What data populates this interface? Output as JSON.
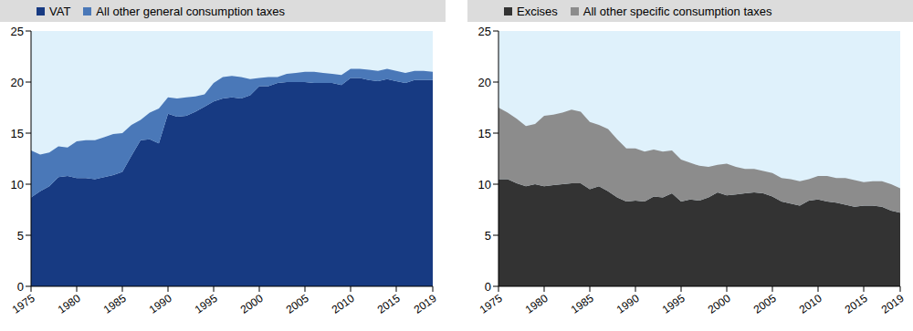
{
  "chart_data": [
    {
      "type": "area",
      "stacked": true,
      "legend": "top",
      "grid": true,
      "x": [
        1975,
        1976,
        1977,
        1978,
        1979,
        1980,
        1981,
        1982,
        1983,
        1984,
        1985,
        1986,
        1987,
        1988,
        1989,
        1990,
        1991,
        1992,
        1993,
        1994,
        1995,
        1996,
        1997,
        1998,
        1999,
        2000,
        2001,
        2002,
        2003,
        2004,
        2005,
        2006,
        2007,
        2008,
        2009,
        2010,
        2011,
        2012,
        2013,
        2014,
        2015,
        2016,
        2017,
        2018,
        2019
      ],
      "xlim": [
        1975,
        2019
      ],
      "xticks": [
        1975,
        1980,
        1985,
        1990,
        1995,
        2000,
        2005,
        2010,
        2015,
        2019
      ],
      "ylim": [
        0,
        25
      ],
      "yticks": [
        0,
        5,
        10,
        15,
        20,
        25
      ],
      "series": [
        {
          "name": "VAT",
          "color": "#173a82",
          "values": [
            8.7,
            9.3,
            9.8,
            10.7,
            10.8,
            10.6,
            10.6,
            10.5,
            10.7,
            10.9,
            11.2,
            12.8,
            14.3,
            14.4,
            14.0,
            16.9,
            16.6,
            16.7,
            17.1,
            17.6,
            18.1,
            18.4,
            18.5,
            18.4,
            18.7,
            19.6,
            19.6,
            19.9,
            20.0,
            20.0,
            20.0,
            19.9,
            19.9,
            19.9,
            19.7,
            20.4,
            20.4,
            20.2,
            20.1,
            20.3,
            20.1,
            19.9,
            20.2,
            20.2,
            20.2
          ]
        },
        {
          "name": "All other general consumption taxes",
          "color": "#4a78b8",
          "values": [
            4.6,
            3.6,
            3.3,
            3.0,
            2.8,
            3.6,
            3.7,
            3.8,
            3.9,
            4.0,
            3.8,
            3.0,
            2.0,
            2.6,
            3.4,
            1.6,
            1.8,
            1.8,
            1.5,
            1.2,
            1.8,
            2.1,
            2.1,
            2.1,
            1.6,
            0.8,
            0.9,
            0.6,
            0.8,
            0.9,
            1.0,
            1.1,
            1.0,
            0.9,
            1.0,
            0.9,
            0.9,
            1.0,
            1.0,
            1.0,
            1.0,
            1.0,
            0.9,
            0.9,
            0.8
          ]
        }
      ]
    },
    {
      "type": "area",
      "stacked": true,
      "legend": "top",
      "grid": true,
      "x": [
        1975,
        1976,
        1977,
        1978,
        1979,
        1980,
        1981,
        1982,
        1983,
        1984,
        1985,
        1986,
        1987,
        1988,
        1989,
        1990,
        1991,
        1992,
        1993,
        1994,
        1995,
        1996,
        1997,
        1998,
        1999,
        2000,
        2001,
        2002,
        2003,
        2004,
        2005,
        2006,
        2007,
        2008,
        2009,
        2010,
        2011,
        2012,
        2013,
        2014,
        2015,
        2016,
        2017,
        2018,
        2019
      ],
      "xlim": [
        1975,
        2019
      ],
      "xticks": [
        1975,
        1980,
        1985,
        1990,
        1995,
        2000,
        2005,
        2010,
        2015,
        2019
      ],
      "ylim": [
        0,
        25
      ],
      "yticks": [
        0,
        5,
        10,
        15,
        20,
        25
      ],
      "series": [
        {
          "name": "Excises",
          "color": "#333333",
          "values": [
            10.5,
            10.5,
            10.1,
            9.8,
            10.0,
            9.8,
            9.9,
            10.0,
            10.1,
            10.1,
            9.5,
            9.8,
            9.3,
            8.7,
            8.3,
            8.4,
            8.3,
            8.8,
            8.7,
            9.1,
            8.3,
            8.5,
            8.4,
            8.7,
            9.2,
            8.9,
            9.0,
            9.1,
            9.2,
            9.1,
            8.8,
            8.3,
            8.1,
            7.9,
            8.4,
            8.5,
            8.3,
            8.2,
            8.0,
            7.8,
            7.9,
            7.9,
            7.8,
            7.4,
            7.2
          ]
        },
        {
          "name": "All other specific consumption taxes",
          "color": "#8c8c8c",
          "values": [
            7.0,
            6.5,
            6.3,
            5.9,
            5.9,
            6.9,
            6.9,
            7.0,
            7.2,
            7.0,
            6.6,
            6.0,
            6.1,
            5.7,
            5.2,
            5.1,
            4.9,
            4.6,
            4.5,
            4.2,
            4.1,
            3.6,
            3.4,
            3.0,
            2.7,
            3.1,
            2.7,
            2.4,
            2.3,
            2.2,
            2.3,
            2.3,
            2.4,
            2.4,
            2.1,
            2.3,
            2.5,
            2.4,
            2.6,
            2.6,
            2.3,
            2.4,
            2.5,
            2.6,
            2.4
          ]
        }
      ]
    }
  ]
}
